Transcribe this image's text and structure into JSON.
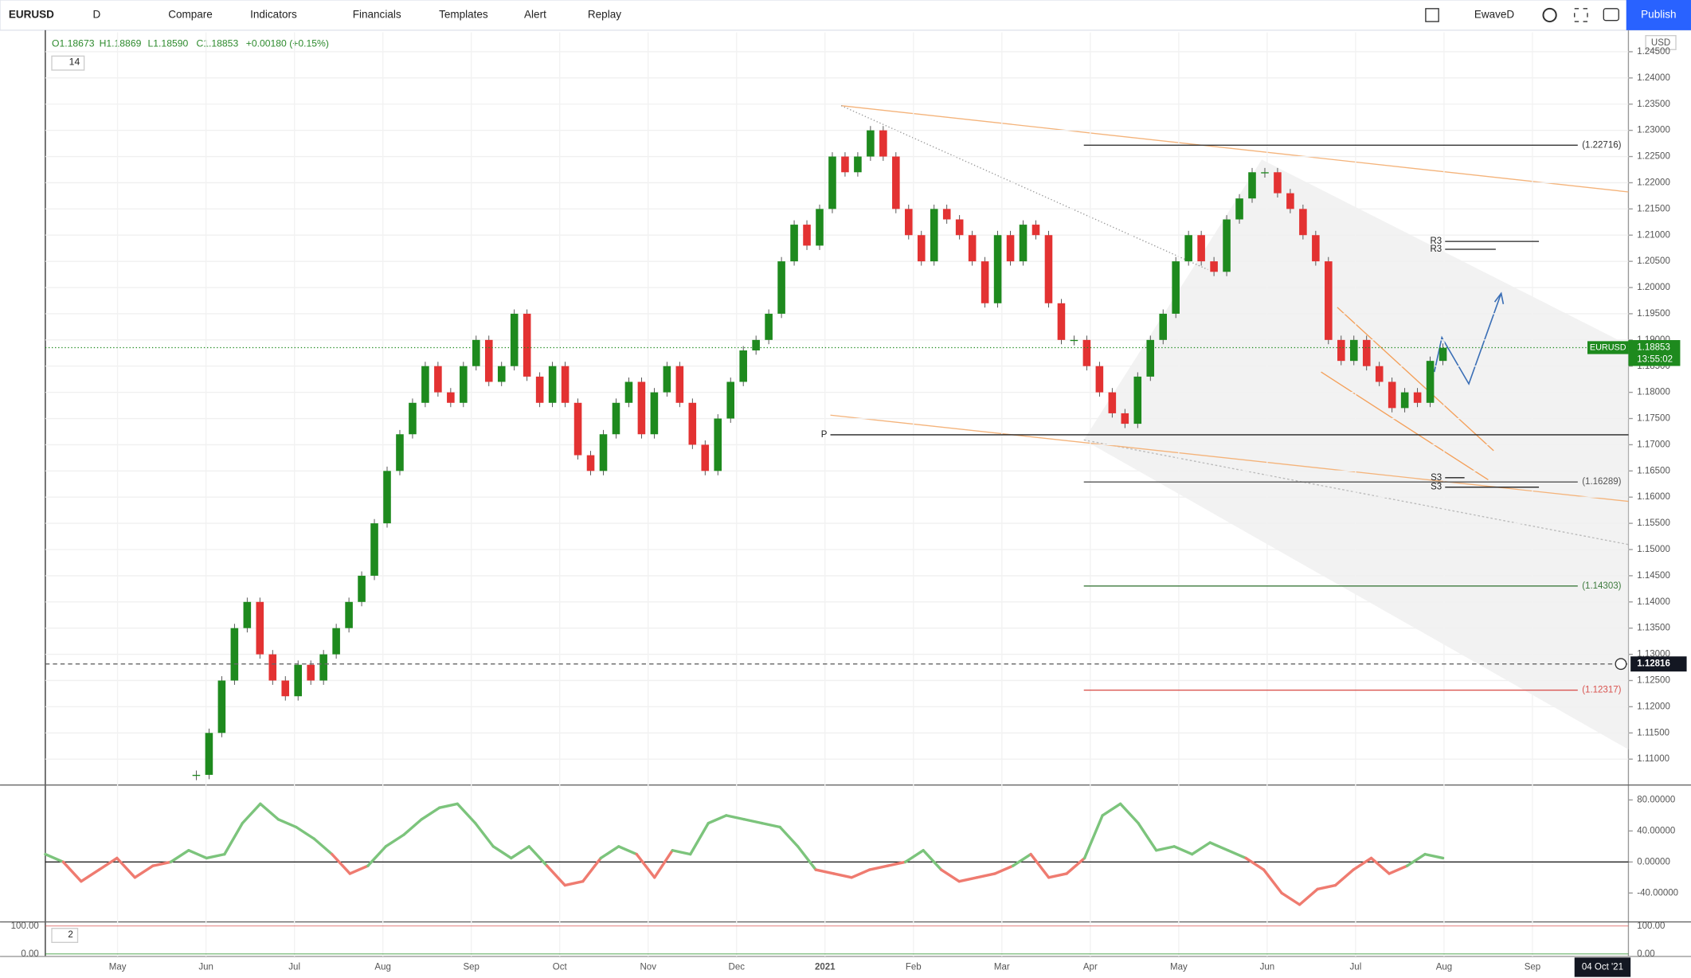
{
  "toolbar": {
    "symbol": "EURUSD",
    "interval": "D",
    "buttons": [
      "Compare",
      "Indicators",
      "Financials",
      "Templates",
      "Alert",
      "Replay"
    ],
    "layout_name": "EwaveD",
    "publish": "Publish"
  },
  "legend": {
    "ohlc": [
      "O1.18673",
      "H1.18869",
      "L1.18590",
      "C1.18853",
      "+0.00180 (+0.15%)"
    ],
    "indicator_count": 14
  },
  "chart_data": [
    {
      "type": "candlestick",
      "currency": "USD",
      "up_color": "#1e8a1e",
      "down_color": "#e33232",
      "closes": [
        1.107,
        1.115,
        1.125,
        1.135,
        1.14,
        1.13,
        1.125,
        1.122,
        1.128,
        1.125,
        1.13,
        1.135,
        1.14,
        1.145,
        1.155,
        1.165,
        1.172,
        1.178,
        1.185,
        1.18,
        1.178,
        1.185,
        1.19,
        1.182,
        1.185,
        1.195,
        1.183,
        1.178,
        1.185,
        1.178,
        1.168,
        1.165,
        1.172,
        1.178,
        1.182,
        1.172,
        1.18,
        1.185,
        1.178,
        1.17,
        1.165,
        1.175,
        1.182,
        1.188,
        1.19,
        1.195,
        1.205,
        1.212,
        1.208,
        1.215,
        1.225,
        1.222,
        1.225,
        1.23,
        1.225,
        1.215,
        1.21,
        1.205,
        1.215,
        1.213,
        1.21,
        1.205,
        1.197,
        1.21,
        1.205,
        1.212,
        1.21,
        1.197,
        1.19,
        1.19,
        1.185,
        1.18,
        1.176,
        1.174,
        1.183,
        1.19,
        1.195,
        1.205,
        1.21,
        1.205,
        1.203,
        1.213,
        1.217,
        1.222,
        1.222,
        1.218,
        1.215,
        1.21,
        1.205,
        1.19,
        1.186,
        1.19,
        1.185,
        1.182,
        1.177,
        1.18,
        1.178,
        1.186,
        1.1885
      ],
      "ylim": [
        1.10527,
        1.2487
      ],
      "yticks": [
        {
          "value": 1.11,
          "label": "1.11000"
        },
        {
          "value": 1.115,
          "label": "1.11500"
        },
        {
          "value": 1.12,
          "label": "1.12000"
        },
        {
          "value": 1.125,
          "label": "1.12500"
        },
        {
          "value": 1.13,
          "label": "1.13000"
        },
        {
          "value": 1.135,
          "label": "1.13500"
        },
        {
          "value": 1.14,
          "label": "1.14000"
        },
        {
          "value": 1.145,
          "label": "1.14500"
        },
        {
          "value": 1.15,
          "label": "1.15000"
        },
        {
          "value": 1.155,
          "label": "1.15500"
        },
        {
          "value": 1.16,
          "label": "1.16000"
        },
        {
          "value": 1.165,
          "label": "1.16500"
        },
        {
          "value": 1.17,
          "label": "1.17000"
        },
        {
          "value": 1.175,
          "label": "1.17500"
        },
        {
          "value": 1.18,
          "label": "1.18000"
        },
        {
          "value": 1.185,
          "label": "1.18500"
        },
        {
          "value": 1.19,
          "label": "1.19000"
        },
        {
          "value": 1.195,
          "label": "1.19500"
        },
        {
          "value": 1.2,
          "label": "1.20000"
        },
        {
          "value": 1.205,
          "label": "1.20500"
        },
        {
          "value": 1.21,
          "label": "1.21000"
        },
        {
          "value": 1.215,
          "label": "1.21500"
        },
        {
          "value": 1.22,
          "label": "1.22000"
        },
        {
          "value": 1.225,
          "label": "1.22500"
        },
        {
          "value": 1.23,
          "label": "1.23000"
        },
        {
          "value": 1.235,
          "label": "1.23500"
        },
        {
          "value": 1.24,
          "label": "1.24000"
        },
        {
          "value": 1.245,
          "label": "1.24500"
        }
      ],
      "levels": [
        {
          "value": 1.22716,
          "label": "(1.22716)",
          "color": "#333333"
        },
        {
          "value": 1.16289,
          "label": "(1.16289)",
          "color": "#555555"
        },
        {
          "value": 1.14303,
          "label": "(1.14303)",
          "color": "#3d7a3d"
        },
        {
          "value": 1.12317,
          "label": "(1.12317)",
          "color": "#d9534f"
        }
      ],
      "pivots": [
        {
          "name": "P",
          "value": 1.1719
        },
        {
          "name": "R3",
          "value": 1.2088
        },
        {
          "name": "R3",
          "value": 1.2073
        },
        {
          "name": "S3",
          "value": 1.1637
        },
        {
          "name": "S3",
          "value": 1.1619
        }
      ],
      "last": {
        "symbol": "EURUSD",
        "value": 1.18853,
        "label": "1.18853",
        "countdown": "13:55:02"
      },
      "crosshair": {
        "value": 1.12816,
        "label": "1.12816"
      },
      "months": [
        "May",
        "Jun",
        "Jul",
        "Aug",
        "Sep",
        "Oct",
        "Nov",
        "Dec",
        "2021",
        "Feb",
        "Mar",
        "Apr",
        "May",
        "Jun",
        "Jul",
        "Aug",
        "Sep"
      ],
      "date_label": "04 Oct '21"
    },
    {
      "type": "line",
      "pos_color": "#7cc47c",
      "neg_color": "#ef7b70",
      "values": [
        10,
        0,
        -25,
        -10,
        5,
        -20,
        -5,
        0,
        15,
        5,
        10,
        50,
        75,
        55,
        45,
        30,
        10,
        -15,
        -5,
        20,
        35,
        55,
        70,
        75,
        50,
        20,
        5,
        20,
        -5,
        -30,
        -25,
        5,
        20,
        10,
        -20,
        15,
        10,
        50,
        60,
        55,
        50,
        45,
        20,
        -10,
        -15,
        -20,
        -10,
        -5,
        0,
        15,
        -10,
        -25,
        -20,
        -15,
        -5,
        10,
        -20,
        -15,
        5,
        60,
        75,
        50,
        15,
        20,
        10,
        25,
        15,
        5,
        -10,
        -40,
        -55,
        -35,
        -30,
        -10,
        5,
        -15,
        -5,
        10,
        5
      ],
      "ylim": [
        -75.9,
        96.5
      ],
      "yticks": [
        {
          "value": 80,
          "label": "80.00000"
        },
        {
          "value": 40,
          "label": "40.00000"
        },
        {
          "value": 0,
          "label": "0.00000"
        },
        {
          "value": -40,
          "label": "-40.00000"
        }
      ]
    },
    {
      "type": "stochastic",
      "indicator_count": 2,
      "ylim": [
        -5,
        107
      ],
      "yticks": [
        {
          "value": 100,
          "label": "100.00"
        },
        {
          "value": 0,
          "label": "0.00"
        }
      ]
    }
  ]
}
